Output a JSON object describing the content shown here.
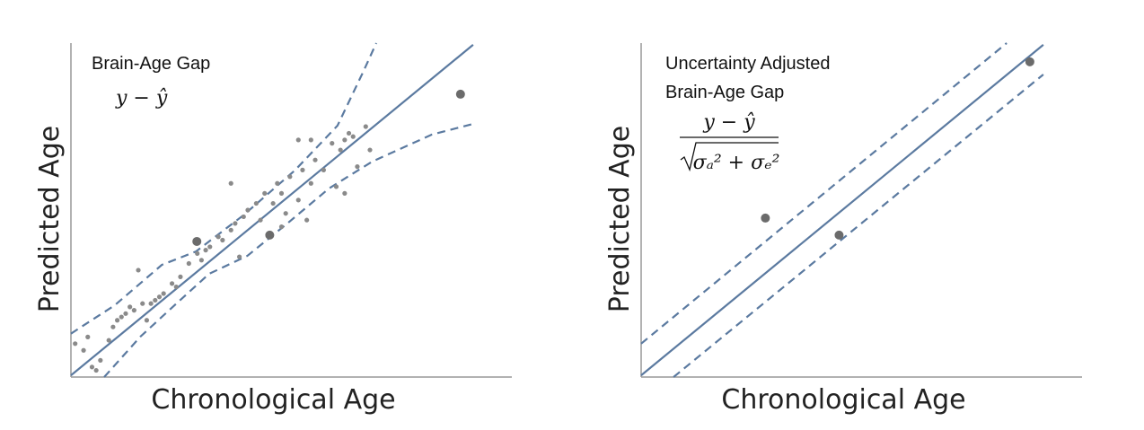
{
  "chart_data": [
    {
      "type": "scatter",
      "annotation": [
        "Brain-Age Gap"
      ],
      "formula": [
        "y − ŷ"
      ],
      "xlabel": "Chronological Age",
      "ylabel": "Predicted Age",
      "xlim": [
        0,
        100
      ],
      "ylim": [
        0,
        100
      ],
      "points": {
        "color": "#8a8a8a",
        "x": [
          1,
          3,
          4,
          5,
          6,
          7,
          9,
          10,
          11,
          12,
          13,
          14,
          15,
          16,
          17,
          18,
          19,
          20,
          21,
          22,
          24,
          25,
          26,
          28,
          30,
          31,
          32,
          33,
          35,
          36,
          38,
          39,
          40,
          41,
          42,
          44,
          45,
          46,
          48,
          49,
          50,
          51,
          52,
          54,
          55,
          56,
          57,
          58,
          60,
          62,
          63,
          64,
          65,
          66,
          67,
          68,
          70,
          71,
          54,
          57,
          38,
          65,
          50
        ],
        "values": [
          10,
          8,
          12,
          3,
          2,
          5,
          11,
          15,
          17,
          18,
          19,
          21,
          20,
          32,
          22,
          17,
          22,
          23,
          24,
          25,
          28,
          27,
          30,
          34,
          37,
          35,
          38,
          39,
          42,
          41,
          44,
          46,
          36,
          48,
          50,
          52,
          47,
          55,
          52,
          58,
          55,
          49,
          60,
          53,
          62,
          47,
          58,
          65,
          62,
          70,
          57,
          68,
          71,
          73,
          72,
          63,
          75,
          68,
          71,
          71,
          58,
          55,
          45
        ]
      },
      "highlight": {
        "color": "#6b6b6b",
        "x": [
          29.9,
          47.2,
          92.5
        ],
        "values": [
          40.6,
          42.5,
          84.7
        ]
      },
      "lines": [
        {
          "color": "#5b7aa0",
          "dashed": false,
          "x": [
            0,
            95.5
          ],
          "values": [
            0.5,
            99.5
          ]
        },
        {
          "color": "#5b7aa0",
          "dashed": true,
          "x": [
            0,
            10.4,
            21.6,
            29.7,
            40.9,
            53.1,
            63.3,
            69.4,
            72.5
          ],
          "values": [
            13,
            21.5,
            33.6,
            37.6,
            48.4,
            61.8,
            75.3,
            91.4,
            100
          ]
        },
        {
          "color": "#5b7aa0",
          "dashed": true,
          "x": [
            7.9,
            16.5,
            24.6,
            32.8,
            41.9,
            51.1,
            61.3,
            71.5,
            85.7,
            95.5
          ],
          "values": [
            0,
            12.1,
            21.5,
            30.9,
            36.3,
            45.7,
            56.5,
            64.5,
            72.6,
            75.8
          ]
        }
      ]
    },
    {
      "type": "scatter",
      "annotation": [
        "Uncertainty Adjusted",
        "Brain-Age Gap"
      ],
      "formula": [
        "y − ŷ",
        "σₐ² + σₑ²"
      ],
      "xlabel": "Chronological Age",
      "ylabel": "Predicted Age",
      "xlim": [
        0,
        100
      ],
      "ylim": [
        0,
        100
      ],
      "highlight": {
        "color": "#6b6b6b",
        "x": [
          29.5,
          47,
          92.3
        ],
        "values": [
          47.6,
          42.5,
          94.4
        ]
      },
      "lines": [
        {
          "color": "#5b7aa0",
          "dashed": false,
          "x": [
            0,
            95.5
          ],
          "values": [
            0.5,
            99.5
          ]
        },
        {
          "color": "#5b7aa0",
          "dashed": true,
          "x": [
            0,
            86.8
          ],
          "values": [
            10,
            100
          ]
        },
        {
          "color": "#5b7aa0",
          "dashed": true,
          "x": [
            7.7,
            95.5
          ],
          "values": [
            0,
            90.6
          ]
        }
      ]
    }
  ]
}
